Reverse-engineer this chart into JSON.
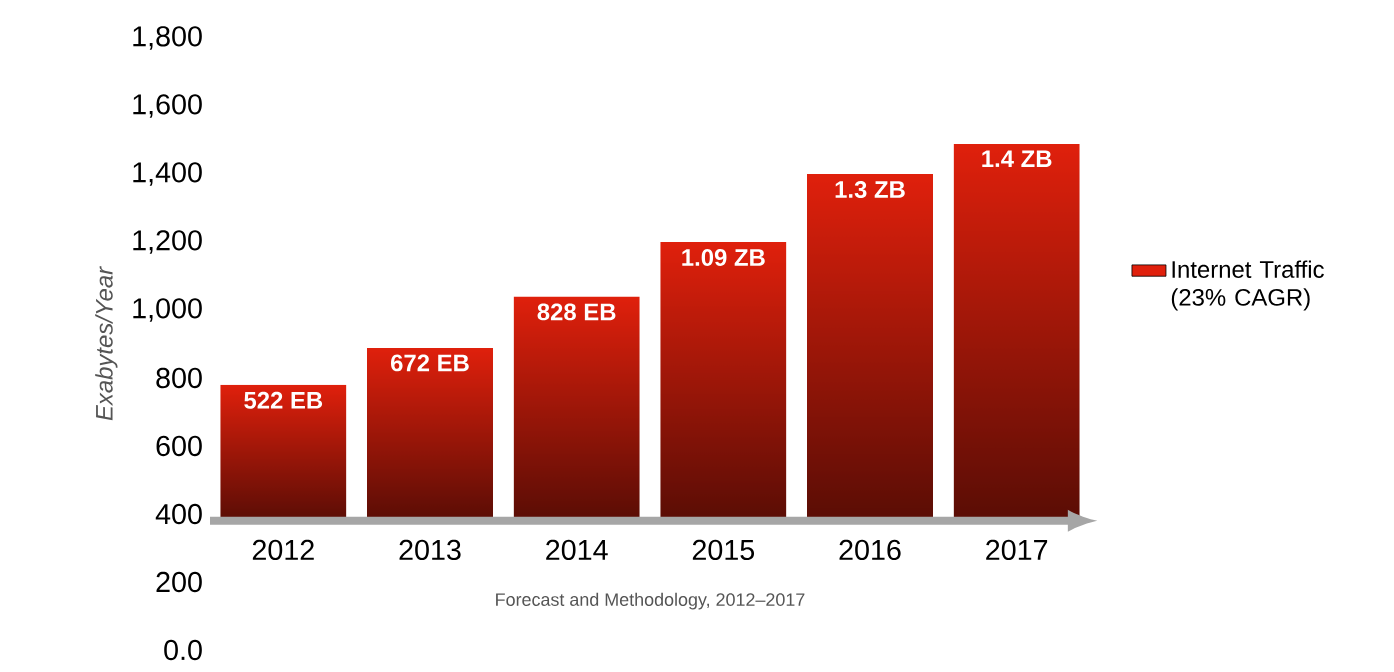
{
  "chart_data": {
    "type": "bar",
    "ylabel": "Exabytes/Year",
    "categories": [
      "2012",
      "2013",
      "2014",
      "2015",
      "2016",
      "2017"
    ],
    "series": [
      {
        "name": "Internet Traffic (23% CAGR)",
        "color": "#e0200c",
        "values": [
          400,
          510,
          660,
          820,
          1020,
          1110
        ],
        "base": [
          380,
          380,
          380,
          380,
          380,
          380
        ]
      }
    ],
    "value_labels": [
      "522 EB",
      "672 EB",
      "828 EB",
      "1.09 ZB",
      "1.3 ZB",
      "1.4 ZB"
    ],
    "ylim": [
      0,
      1800
    ],
    "yticks": [
      {
        "value": 0,
        "label": "0.0"
      },
      200,
      400,
      600,
      800,
      {
        "value": 1000,
        "label": "1,000"
      },
      {
        "value": 1200,
        "label": "1,200"
      },
      {
        "value": 1400,
        "label": "1,400"
      },
      {
        "value": 1600,
        "label": "1,600"
      },
      {
        "value": 1800,
        "label": "1,800"
      }
    ],
    "legend": "right",
    "grid": false,
    "annotations": [
      "Forecast and Methodology, 2012–2017"
    ]
  }
}
